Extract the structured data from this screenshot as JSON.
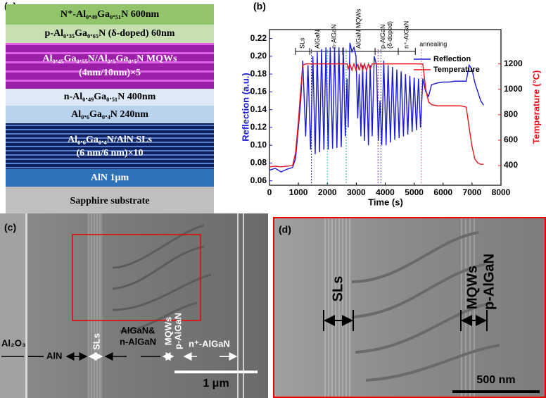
{
  "panel_a": {
    "label": "(a)",
    "layers": [
      [
        "N⁺-Al₀.₄₉Ga₀.₅₁N 600nm"
      ],
      [
        "p-Al₀.₃₅Ga₀.₆₅N (δ-doped) 60nm"
      ],
      [
        "Al₀.₄₅Ga₀.₅₅N/Al₀.₅Ga₀.₅N MQWs",
        "(4nm/10nm)×5"
      ],
      [
        "n-Al₀.₄₉Ga₀.₅₁N 400nm"
      ],
      [
        "Al₀.₆Ga₀.₄N 240nm"
      ],
      [
        "Al₀.₆Ga₀.₄N/AlN SLs",
        "(6 nm/6 nm)×10"
      ],
      [
        "AlN 1μm"
      ],
      [
        "Sapphire substrate"
      ]
    ]
  },
  "chart_data": {
    "type": "line",
    "label": "(b)",
    "x_label": "Time (s)",
    "y_label": "Reflection (a.u.)",
    "y2_label": "Temperature (°C)",
    "xlim": [
      0,
      8000
    ],
    "xticks": [
      0,
      1000,
      2000,
      3000,
      4000,
      5000,
      6000,
      7000,
      8000
    ],
    "ylim": [
      0.055,
      0.23
    ],
    "yticks": [
      0.06,
      0.08,
      {
        "value": 0.1,
        "label": "0.10"
      },
      0.12,
      0.14,
      0.16,
      0.18,
      {
        "value": 0.2,
        "label": "0.20"
      },
      0.22
    ],
    "y2lim": [
      245,
      1470
    ],
    "y2ticks": [
      400,
      600,
      800,
      1000,
      1200
    ],
    "legend": "top-right",
    "x": [
      0,
      200,
      400,
      600,
      800,
      900,
      1000,
      1080,
      1150,
      1250,
      1330,
      1420,
      1500,
      1580,
      1650,
      1730,
      1800,
      1880,
      1950,
      2030,
      2100,
      2180,
      2250,
      2330,
      2400,
      2480,
      2550,
      2620,
      2680,
      2720,
      2780,
      2850,
      2920,
      2990,
      3050,
      3100,
      3160,
      3220,
      3280,
      3350,
      3420,
      3480,
      3550,
      3620,
      3700,
      3760,
      3820,
      3880,
      3950,
      4030,
      4100,
      4180,
      4250,
      4330,
      4400,
      4480,
      4550,
      4630,
      4700,
      4780,
      4850,
      4930,
      5000,
      5080,
      5150,
      5220,
      5300,
      5400,
      5500,
      5600,
      5800,
      6000,
      6200,
      6400,
      6600,
      6800,
      6900,
      7000,
      7100,
      7200,
      7300,
      7400
    ],
    "series": [
      {
        "name": "Reflection",
        "color": "#1a1ad8",
        "values": [
          0.072,
          0.074,
          0.07,
          0.073,
          0.075,
          0.085,
          0.12,
          0.15,
          0.195,
          0.11,
          0.19,
          0.095,
          0.2,
          0.09,
          0.205,
          0.092,
          0.208,
          0.095,
          0.21,
          0.095,
          0.21,
          0.096,
          0.21,
          0.097,
          0.21,
          0.098,
          0.21,
          0.11,
          0.175,
          0.12,
          0.215,
          0.205,
          0.21,
          0.2,
          0.13,
          0.18,
          0.11,
          0.19,
          0.105,
          0.185,
          0.1,
          0.19,
          0.11,
          0.2,
          0.19,
          0.105,
          0.15,
          0.1,
          0.195,
          0.1,
          0.19,
          0.103,
          0.188,
          0.106,
          0.185,
          0.108,
          0.183,
          0.11,
          0.18,
          0.112,
          0.178,
          0.115,
          0.176,
          0.117,
          0.175,
          0.12,
          0.175,
          0.16,
          0.155,
          0.168,
          0.17,
          0.171,
          0.171,
          0.172,
          0.172,
          0.172,
          0.19,
          0.185,
          0.17,
          0.16,
          0.15,
          0.145
        ]
      },
      {
        "name": "Temperature",
        "color": "#e8141e",
        "axis": "y2",
        "values": [
          390,
          395,
          390,
          395,
          400,
          500,
          750,
          1000,
          1190,
          1200,
          1200,
          1200,
          1200,
          1200,
          1200,
          1200,
          1200,
          1200,
          1200,
          1200,
          1200,
          1200,
          1200,
          1200,
          1200,
          1200,
          1200,
          1200,
          1200,
          1160,
          1200,
          1150,
          1200,
          1150,
          1200,
          1150,
          1200,
          1150,
          1200,
          1150,
          1200,
          1160,
          1200,
          1200,
          1200,
          1200,
          1200,
          1200,
          1200,
          1200,
          1200,
          1200,
          1200,
          1200,
          1200,
          1200,
          1200,
          1200,
          1200,
          1200,
          1200,
          1200,
          1200,
          1200,
          1200,
          1200,
          1200,
          1000,
          900,
          880,
          870,
          870,
          870,
          870,
          870,
          860,
          700,
          550,
          450,
          420,
          410,
          410
        ]
      }
    ],
    "stage_bounds": [
      900,
      1390,
      1950,
      2530,
      3650,
      4450,
      5040
    ],
    "stages": [
      [
        "SLs"
      ],
      [
        "AlGaN"
      ],
      [
        "n-AlGaN"
      ],
      [
        "AlGaN MQWs"
      ],
      [
        "p-AlGaN",
        "(δ-doped)"
      ],
      [
        "n⁺-AlGaN"
      ]
    ],
    "annotation": "annealing",
    "markers": [
      {
        "x": 1450,
        "color": "#1a237e"
      },
      {
        "x": 2000,
        "color": "#26c6da"
      },
      {
        "x": 2650,
        "color": "#26a69a"
      },
      {
        "x": 3750,
        "color": "#9c27b0"
      },
      {
        "x": 3850,
        "color": "#3f51b5"
      },
      {
        "x": 5250,
        "color": "#f06292"
      }
    ]
  },
  "panel_c": {
    "label": "(c)",
    "labels": [
      "Al₂O₃",
      "AlN",
      "SLs",
      "AlGaN&",
      "n-AlGaN",
      "MQWs",
      "p-AlGaN",
      "n⁺-AlGaN"
    ],
    "scale_bar": "1 μm"
  },
  "panel_d": {
    "label": "(d)",
    "labels": [
      "SLs",
      "MQWs",
      "p-AlGaN"
    ],
    "scale_bar": "500 nm"
  }
}
